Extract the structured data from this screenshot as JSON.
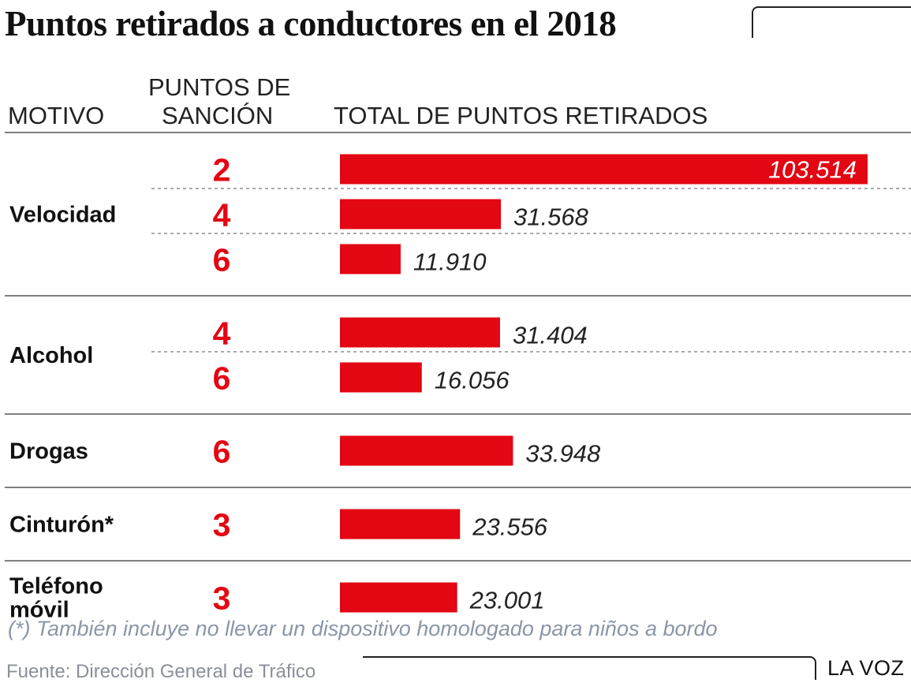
{
  "title": "Puntos retirados a conductores en el 2018",
  "headers": {
    "motivo": "MOTIVO",
    "puntos_line1": "PUNTOS DE",
    "puntos_line2": "SANCIÓN",
    "total": "TOTAL DE PUNTOS RETIRADOS"
  },
  "colors": {
    "bar": "#e30613",
    "points": "#e30613",
    "value_text": "#222222",
    "value_text_inside": "#ffffff"
  },
  "chart_data": {
    "type": "bar",
    "orientation": "horizontal",
    "xlim": [
      0,
      103514
    ],
    "groups": [
      {
        "motivo_lines": [
          "Velocidad"
        ],
        "rows": [
          {
            "puntos": "2",
            "value": 103514,
            "label": "103.514"
          },
          {
            "puntos": "4",
            "value": 31568,
            "label": "31.568"
          },
          {
            "puntos": "6",
            "value": 11910,
            "label": "11.910"
          }
        ]
      },
      {
        "motivo_lines": [
          "Alcohol"
        ],
        "rows": [
          {
            "puntos": "4",
            "value": 31404,
            "label": "31.404"
          },
          {
            "puntos": "6",
            "value": 16056,
            "label": "16.056"
          }
        ]
      },
      {
        "motivo_lines": [
          "Drogas"
        ],
        "rows": [
          {
            "puntos": "6",
            "value": 33948,
            "label": "33.948"
          }
        ]
      },
      {
        "motivo_lines": [
          "Cinturón*"
        ],
        "rows": [
          {
            "puntos": "3",
            "value": 23556,
            "label": "23.556"
          }
        ]
      },
      {
        "motivo_lines": [
          "Teléfono",
          "móvil"
        ],
        "rows": [
          {
            "puntos": "3",
            "value": 23001,
            "label": "23.001"
          }
        ]
      }
    ]
  },
  "footnote": "(*) También incluye no llevar un dispositivo homologado para niños a bordo",
  "source": "Fuente: Dirección General de Tráfico",
  "brand": "LA VOZ"
}
